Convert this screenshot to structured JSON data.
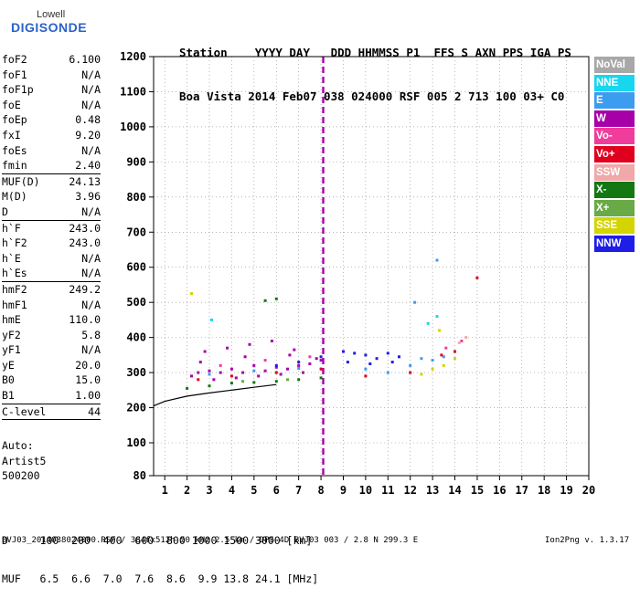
{
  "logo": {
    "top": "Lowell",
    "main": "DIGISONDE"
  },
  "header": {
    "line1": "Station    YYYY DAY   DDD HHMMSS P1  FFS S AXN PPS IGA PS",
    "line2": "Boa Vista 2014 Feb07 038 024000 RSF 005 2 713 100 03+ C0"
  },
  "params": [
    {
      "name": "foF2",
      "value": "6.100"
    },
    {
      "name": "foF1",
      "value": "N/A"
    },
    {
      "name": "foF1p",
      "value": "N/A"
    },
    {
      "name": "foE",
      "value": "N/A"
    },
    {
      "name": "foEp",
      "value": "0.48"
    },
    {
      "name": "fxI",
      "value": "9.20"
    },
    {
      "name": "foEs",
      "value": "N/A"
    },
    {
      "name": "fmin",
      "value": "2.40"
    },
    {
      "name": "MUF(D)",
      "value": "24.13",
      "sep": true
    },
    {
      "name": "M(D)",
      "value": "3.96"
    },
    {
      "name": "D",
      "value": "N/A"
    },
    {
      "name": "h`F",
      "value": "243.0",
      "sep": true
    },
    {
      "name": "h`F2",
      "value": "243.0"
    },
    {
      "name": "h`E",
      "value": "N/A"
    },
    {
      "name": "h`Es",
      "value": "N/A"
    },
    {
      "name": "hmF2",
      "value": "249.2",
      "sep": true
    },
    {
      "name": "hmF1",
      "value": "N/A"
    },
    {
      "name": "hmE",
      "value": "110.0"
    },
    {
      "name": "yF2",
      "value": "5.8"
    },
    {
      "name": "yF1",
      "value": "N/A"
    },
    {
      "name": "yE",
      "value": "20.0"
    },
    {
      "name": "B0",
      "value": "15.0"
    },
    {
      "name": "B1",
      "value": "1.00"
    },
    {
      "name": "C-level",
      "value": "44",
      "sep": true
    }
  ],
  "note": {
    "line1": "Auto:",
    "line2": "Artist5",
    "line3": "500200"
  },
  "legend": [
    {
      "label": "NoVal",
      "color": "#a8a8a8"
    },
    {
      "label": "NNE",
      "color": "#19d6f0"
    },
    {
      "label": "E",
      "color": "#3c9cf0"
    },
    {
      "label": "W",
      "color": "#a800a8"
    },
    {
      "label": "Vo-",
      "color": "#f03c9c"
    },
    {
      "label": "Vo+",
      "color": "#e0001e"
    },
    {
      "label": "SSW",
      "color": "#f0a8a8"
    },
    {
      "label": "X-",
      "color": "#127812"
    },
    {
      "label": "X+",
      "color": "#6aaa46"
    },
    {
      "label": "SSE",
      "color": "#d4d400"
    },
    {
      "label": "NNW",
      "color": "#1e1ee6"
    }
  ],
  "bottom_table": {
    "row1": "D     100  200  400  600  800 1000 1500 3000 [km]",
    "row2": "MUF   6.5  6.6  7.0  7.6  8.6  9.9 13.8 24.1 [MHz]"
  },
  "footer": {
    "left": "BVJ03_2014038024000.RSF / 384fx512h 50 kHz 2.5 km / DPS-4D BVJ03 003 / 2.8 N 299.3 E",
    "right": "Ion2Png v. 1.3.17"
  },
  "chart_data": {
    "type": "scatter",
    "title": "",
    "xlabel": "",
    "ylabel": "",
    "xlim": [
      0.5,
      20
    ],
    "ylim": [
      80,
      1200
    ],
    "x_ticks": [
      1,
      2,
      3,
      4,
      5,
      6,
      7,
      8,
      9,
      10,
      11,
      12,
      13,
      14,
      15,
      16,
      17,
      18,
      19,
      20
    ],
    "y_ticks": [
      80,
      100,
      200,
      300,
      400,
      500,
      600,
      700,
      800,
      900,
      1000,
      1100,
      1200
    ],
    "grid": true,
    "legend_position": "right",
    "marker_frequency": 8.1,
    "trace_curve": {
      "x": [
        0.5,
        1,
        2,
        3,
        4,
        5,
        6
      ],
      "y": [
        205,
        218,
        233,
        242,
        250,
        258,
        266
      ]
    },
    "series": [
      {
        "name": "W",
        "color": "#a800a8",
        "points": [
          [
            2.2,
            290
          ],
          [
            2.5,
            300
          ],
          [
            3,
            305
          ],
          [
            3.5,
            300
          ],
          [
            4,
            310
          ],
          [
            4.5,
            300
          ],
          [
            5,
            320
          ],
          [
            5.5,
            305
          ],
          [
            6,
            315
          ],
          [
            6.5,
            310
          ],
          [
            7,
            320
          ],
          [
            7.5,
            325
          ],
          [
            8,
            335
          ],
          [
            2.8,
            360
          ],
          [
            3.8,
            370
          ],
          [
            4.8,
            380
          ],
          [
            5.8,
            390
          ],
          [
            6.8,
            365
          ],
          [
            3.2,
            280
          ],
          [
            4.2,
            285
          ],
          [
            5.2,
            290
          ],
          [
            6.2,
            295
          ],
          [
            7.2,
            300
          ],
          [
            2.6,
            330
          ],
          [
            4.6,
            345
          ],
          [
            6.6,
            350
          ],
          [
            7.8,
            340
          ]
        ]
      },
      {
        "name": "NNW",
        "color": "#1e1ee6",
        "points": [
          [
            6,
            320
          ],
          [
            7,
            330
          ],
          [
            8,
            345
          ],
          [
            9,
            360
          ],
          [
            9.5,
            355
          ],
          [
            10,
            350
          ],
          [
            10.5,
            340
          ],
          [
            11,
            355
          ],
          [
            11.5,
            345
          ],
          [
            9.2,
            330
          ],
          [
            10.2,
            325
          ],
          [
            11.2,
            330
          ]
        ]
      },
      {
        "name": "E",
        "color": "#3c9cf0",
        "points": [
          [
            3,
            295
          ],
          [
            5,
            305
          ],
          [
            7,
            312
          ],
          [
            10,
            310
          ],
          [
            11,
            300
          ],
          [
            12,
            320
          ],
          [
            12.5,
            340
          ],
          [
            13,
            335
          ],
          [
            13.5,
            345
          ],
          [
            12.2,
            500
          ],
          [
            13.2,
            620
          ]
        ]
      },
      {
        "name": "Vo+",
        "color": "#e0001e",
        "points": [
          [
            2.5,
            280
          ],
          [
            4,
            290
          ],
          [
            6,
            300
          ],
          [
            8,
            310
          ],
          [
            10,
            290
          ],
          [
            12,
            300
          ],
          [
            13.4,
            350
          ],
          [
            14,
            360
          ],
          [
            15,
            570
          ]
        ]
      },
      {
        "name": "Vo-",
        "color": "#f03c9c",
        "points": [
          [
            3.5,
            320
          ],
          [
            5.5,
            335
          ],
          [
            7.5,
            345
          ],
          [
            13.6,
            370
          ],
          [
            14.3,
            390
          ]
        ]
      },
      {
        "name": "X-",
        "color": "#127812",
        "points": [
          [
            2,
            255
          ],
          [
            3,
            262
          ],
          [
            4,
            270
          ],
          [
            5,
            272
          ],
          [
            6,
            275
          ],
          [
            7,
            280
          ],
          [
            8,
            285
          ],
          [
            5.5,
            505
          ],
          [
            6,
            510
          ]
        ]
      },
      {
        "name": "SSE",
        "color": "#d4d400",
        "points": [
          [
            12.5,
            295
          ],
          [
            13,
            310
          ],
          [
            13.5,
            320
          ],
          [
            14,
            340
          ],
          [
            2.2,
            525
          ],
          [
            13.3,
            420
          ]
        ]
      },
      {
        "name": "SSW",
        "color": "#f0a8a8",
        "points": [
          [
            14.5,
            400
          ],
          [
            14.2,
            385
          ]
        ]
      },
      {
        "name": "NNE",
        "color": "#19d6f0",
        "points": [
          [
            13.2,
            460
          ],
          [
            12.8,
            440
          ],
          [
            3.1,
            450
          ]
        ]
      },
      {
        "name": "X+",
        "color": "#6aaa46",
        "points": [
          [
            4.5,
            275
          ],
          [
            6.5,
            280
          ]
        ]
      }
    ]
  }
}
